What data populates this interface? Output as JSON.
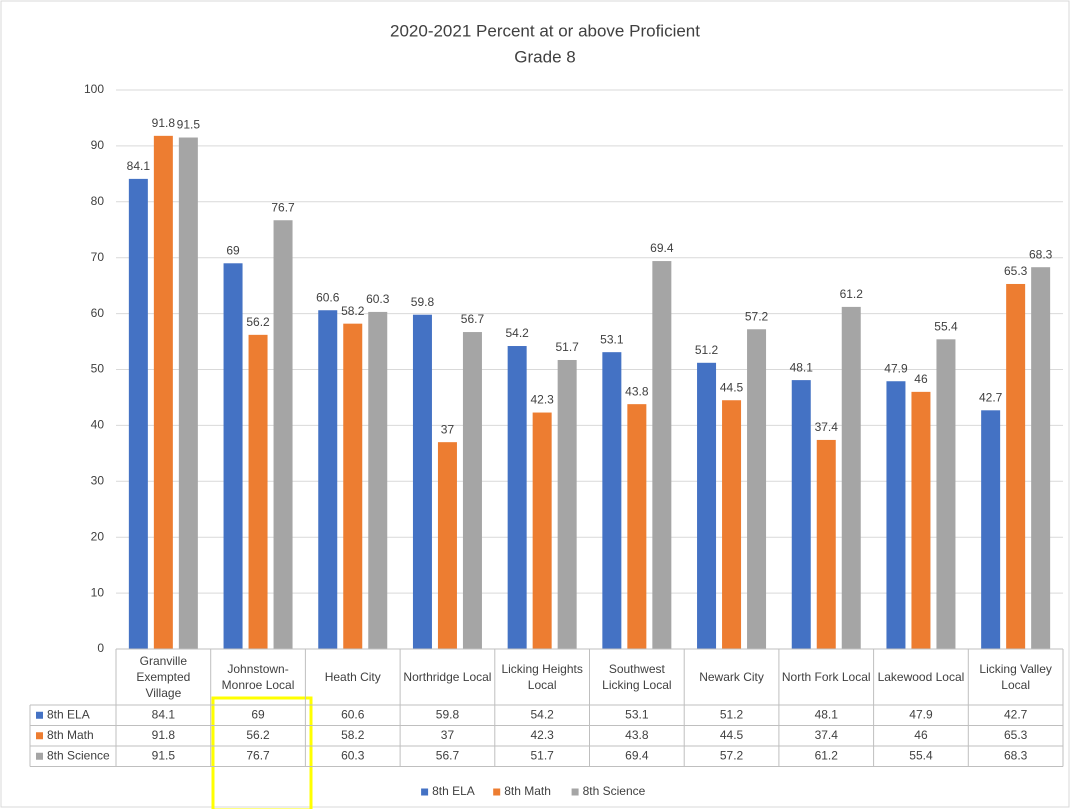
{
  "chart_data": {
    "type": "bar",
    "title": "2020-2021 Percent at or above Proficient",
    "subtitle": "Grade 8",
    "categories": [
      "Granville Exempted Village",
      "Johnstown-Monroe Local",
      "Heath City",
      "Northridge Local",
      "Licking Heights Local",
      "Southwest Licking Local",
      "Newark City",
      "North Fork Local",
      "Lakewood Local",
      "Licking Valley Local"
    ],
    "series": [
      {
        "name": "8th ELA",
        "color": "#4472c4",
        "values": [
          84.1,
          69,
          60.6,
          59.8,
          54.2,
          53.1,
          51.2,
          48.1,
          47.9,
          42.7
        ]
      },
      {
        "name": "8th Math",
        "color": "#ed7d31",
        "values": [
          91.8,
          56.2,
          58.2,
          37,
          42.3,
          43.8,
          44.5,
          37.4,
          46,
          65.3
        ]
      },
      {
        "name": "8th Science",
        "color": "#a5a5a5",
        "values": [
          91.5,
          76.7,
          60.3,
          56.7,
          51.7,
          69.4,
          57.2,
          61.2,
          55.4,
          68.3
        ]
      }
    ],
    "ylim": [
      0,
      100
    ],
    "yticks": [
      0,
      10,
      20,
      30,
      40,
      50,
      60,
      70,
      80,
      90,
      100
    ],
    "grid": true,
    "data_table": true,
    "legend": "bottom"
  }
}
